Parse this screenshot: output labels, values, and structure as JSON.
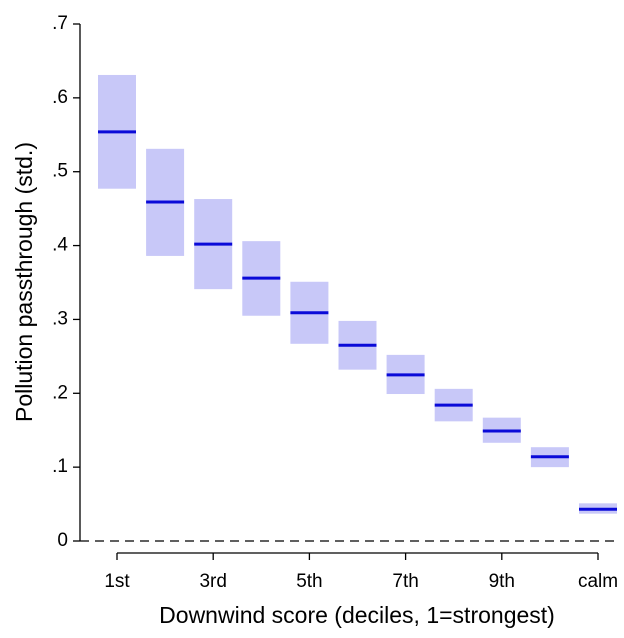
{
  "chart_data": {
    "type": "interval",
    "y_label": "Pollution passthrough (std.)",
    "x_label": "Downwind score (deciles, 1=strongest)",
    "categories": [
      "1st",
      null,
      "3rd",
      null,
      "5th",
      null,
      "7th",
      null,
      "9th",
      null,
      "calm"
    ],
    "values": [
      0.554,
      0.459,
      0.402,
      0.356,
      0.309,
      0.265,
      0.225,
      0.184,
      0.149,
      0.114,
      0.043
    ],
    "lower": [
      0.477,
      0.386,
      0.341,
      0.305,
      0.267,
      0.232,
      0.199,
      0.162,
      0.133,
      0.1,
      0.037
    ],
    "upper": [
      0.631,
      0.531,
      0.463,
      0.406,
      0.351,
      0.298,
      0.252,
      0.206,
      0.167,
      0.127,
      0.051
    ],
    "color": "#0a0ad8",
    "interval_color": "#c8c8f8",
    "reference_line": 0,
    "ylim": [
      0,
      0.7
    ],
    "yticks": [
      0,
      {
        "value": 0.1,
        "label": ".1"
      },
      {
        "value": 0.2,
        "label": ".2"
      },
      {
        "value": 0.3,
        "label": ".3"
      },
      {
        "value": 0.4,
        "label": ".4"
      },
      {
        "value": 0.5,
        "label": ".5"
      },
      {
        "value": 0.6,
        "label": ".6"
      },
      {
        "value": 0.7,
        "label": ".7"
      }
    ]
  }
}
